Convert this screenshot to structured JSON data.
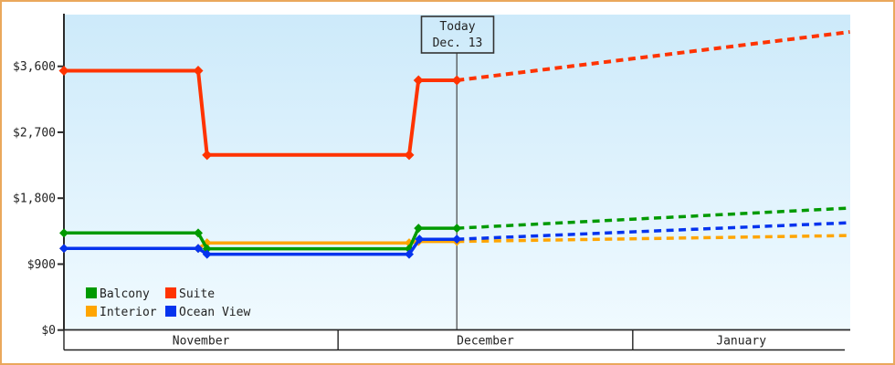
{
  "chart": {
    "frame_border_color": "#EAA85C",
    "plot_bg_top": "#CDEAFA",
    "plot_bg_bottom": "#F0FAFF",
    "axis_color": "#2B2B2B",
    "text_color": "#222222",
    "today_box": {
      "line1": "Today",
      "line2": "Dec. 13"
    }
  },
  "chart_data": {
    "type": "line",
    "title": "",
    "x_axis": {
      "unit": "days from Nov 1",
      "months": [
        "November",
        "December",
        "January"
      ],
      "month_boundary_days": [
        0,
        29.3,
        60.8,
        84
      ]
    },
    "y_axis": {
      "tick_values": [
        0,
        900,
        1800,
        2700,
        3600
      ],
      "tick_labels": [
        "$0",
        "$900",
        "$1,800",
        "$2,700",
        "$3,600"
      ],
      "min_value": 0,
      "max_value": 4320,
      "grid": false
    },
    "today": {
      "day": 42,
      "date_label": "Dec. 13"
    },
    "series": [
      {
        "name": "Interior",
        "color": "#FFA500",
        "history": [
          [
            0,
            1115
          ],
          [
            14.35,
            1115
          ],
          [
            15.3,
            1190
          ],
          [
            36.9,
            1190
          ],
          [
            37.9,
            1210
          ],
          [
            42,
            1210
          ]
        ],
        "forecast": [
          [
            42,
            1210
          ],
          [
            84,
            1290
          ]
        ]
      },
      {
        "name": "Balcony",
        "color": "#009A00",
        "history": [
          [
            0,
            1325
          ],
          [
            14.35,
            1325
          ],
          [
            15.3,
            1110
          ],
          [
            36.9,
            1110
          ],
          [
            37.9,
            1390
          ],
          [
            42,
            1390
          ]
        ],
        "forecast": [
          [
            42,
            1390
          ],
          [
            84,
            1665
          ]
        ]
      },
      {
        "name": "Ocean View",
        "color": "#0533EE",
        "history": [
          [
            0,
            1115
          ],
          [
            14.35,
            1115
          ],
          [
            15.3,
            1035
          ],
          [
            36.9,
            1035
          ],
          [
            38,
            1240
          ],
          [
            42,
            1240
          ]
        ],
        "forecast": [
          [
            42,
            1240
          ],
          [
            84,
            1465
          ]
        ]
      },
      {
        "name": "Suite",
        "color": "#FF3300",
        "history": [
          [
            0,
            3540
          ],
          [
            14.35,
            3540
          ],
          [
            15.3,
            2390
          ],
          [
            36.9,
            2390
          ],
          [
            37.9,
            3410
          ],
          [
            42,
            3410
          ]
        ],
        "forecast": [
          [
            42,
            3410
          ],
          [
            84,
            4070
          ]
        ]
      }
    ],
    "legend": {
      "position": "bottom-left-inside",
      "order": [
        "Balcony",
        "Suite",
        "Interior",
        "Ocean View"
      ]
    }
  }
}
